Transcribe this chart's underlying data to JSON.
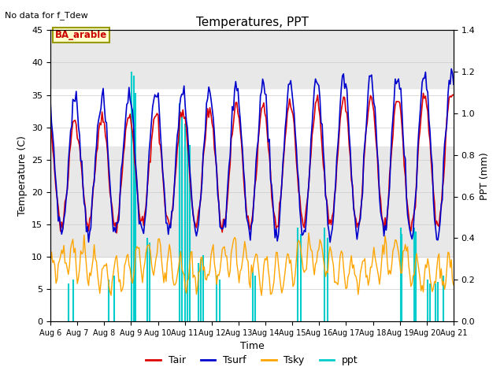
{
  "title": "Temperatures, PPT",
  "subtitle": "No data for f_Tdew",
  "xlabel": "Time",
  "ylabel_left": "Temperature (C)",
  "ylabel_right": "PPT (mm)",
  "legend_label": "BA_arable",
  "ylim_left": [
    0,
    45
  ],
  "ylim_right": [
    0,
    1.4
  ],
  "x_tick_labels": [
    "Aug 6",
    "Aug 7",
    "Aug 8",
    "Aug 9",
    "Aug 10",
    "Aug 11",
    "Aug 12",
    "Aug 13",
    "Aug 14",
    "Aug 15",
    "Aug 16",
    "Aug 17",
    "Aug 18",
    "Aug 19",
    "Aug 20",
    "Aug 21"
  ],
  "Tair_color": "#dd0000",
  "Tsurf_color": "#0000cc",
  "Tsky_color": "#ffa500",
  "ppt_color": "#00cccc",
  "band1_color": "#e8e8e8",
  "band2_color": "#e8e8e8",
  "legend_box_edgecolor": "#999900",
  "legend_box_bg": "#ffffcc",
  "legend_text_color": "#cc0000"
}
